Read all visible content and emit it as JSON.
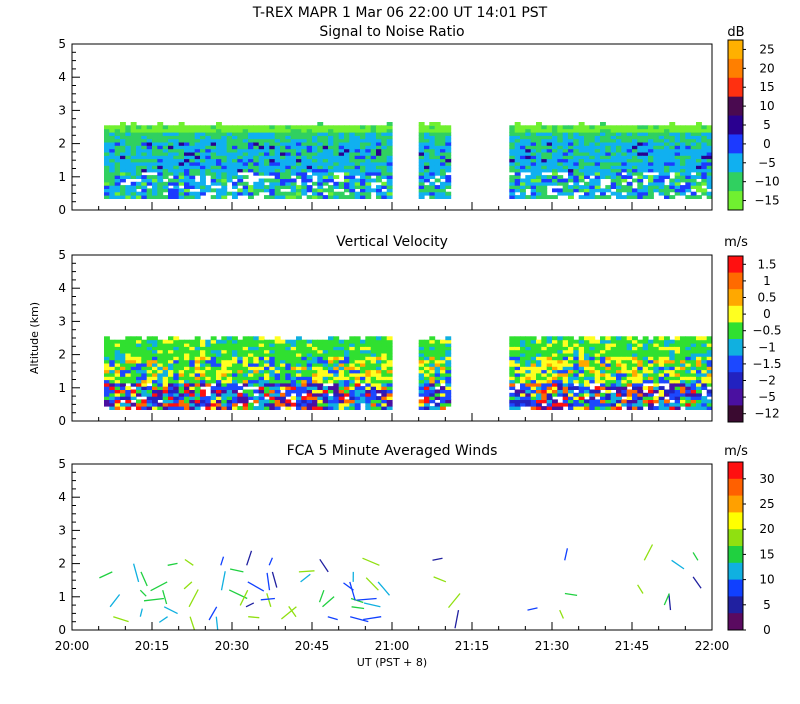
{
  "title": "T-REX   MAPR   1 Mar 06   22:00 UT   14:01   PST",
  "xaxis": {
    "label": "UT  (PST + 8)",
    "range_minutes": [
      0,
      120
    ],
    "ticks": [
      {
        "value": 0,
        "label": "20:00"
      },
      {
        "value": 15,
        "label": "20:15"
      },
      {
        "value": 30,
        "label": "20:30"
      },
      {
        "value": 45,
        "label": "20:45"
      },
      {
        "value": 60,
        "label": "21:00"
      },
      {
        "value": 75,
        "label": "21:15"
      },
      {
        "value": 90,
        "label": "21:30"
      },
      {
        "value": 105,
        "label": "21:45"
      },
      {
        "value": 120,
        "label": "22:00"
      }
    ]
  },
  "yaxis_label": "Altitude (km)",
  "chart_data": [
    {
      "type": "heatmap",
      "title": "Signal to Noise Ratio",
      "units": "dB",
      "ylim": [
        0,
        5
      ],
      "yticks": [
        "0",
        "1",
        "2",
        "3",
        "4",
        "5"
      ],
      "data_segments_minutes": [
        [
          6,
          60
        ],
        [
          65,
          71
        ],
        [
          82,
          120
        ]
      ],
      "approx_top_km": 2.5,
      "colorbar": {
        "labels": [
          "25",
          "20",
          "15",
          "10",
          "5",
          "0",
          "−5",
          "−10",
          "−15"
        ],
        "colors": [
          "#ffb000",
          "#ff7f00",
          "#ff3010",
          "#4a0a50",
          "#2a0090",
          "#1c3aff",
          "#10b0f0",
          "#30d060",
          "#70f030"
        ]
      }
    },
    {
      "type": "heatmap",
      "title": "Vertical Velocity",
      "units": "m/s",
      "ylim": [
        0,
        5
      ],
      "yticks": [
        "0",
        "1",
        "2",
        "3",
        "4",
        "5"
      ],
      "data_segments_minutes": [
        [
          6,
          60
        ],
        [
          65,
          71
        ],
        [
          82,
          120
        ]
      ],
      "approx_top_km": 2.4,
      "colorbar": {
        "labels": [
          "1.5",
          "1",
          "0.5",
          "0",
          "−0.5",
          "−1",
          "−1.5",
          "−2",
          "−5",
          "−12"
        ],
        "colors": [
          "#ff1010",
          "#ff6a00",
          "#ffa800",
          "#ffff20",
          "#30e030",
          "#10b0e0",
          "#1c48ff",
          "#2222c0",
          "#4a10a0",
          "#3a0a30"
        ]
      }
    },
    {
      "type": "scatter",
      "title": "FCA 5 Minute Averaged Winds",
      "units": "m/s",
      "ylim": [
        0,
        5
      ],
      "yticks": [
        "0",
        "1",
        "2",
        "3",
        "4",
        "5"
      ],
      "colorbar": {
        "labels": [
          "30",
          "25",
          "20",
          "15",
          "10",
          "5",
          "0"
        ],
        "colors": [
          "#ff1010",
          "#ff6000",
          "#ffa000",
          "#ffff00",
          "#90e010",
          "#20d040",
          "#10b0e0",
          "#1040ff",
          "#2020a0",
          "#5a0a60"
        ]
      }
    }
  ]
}
